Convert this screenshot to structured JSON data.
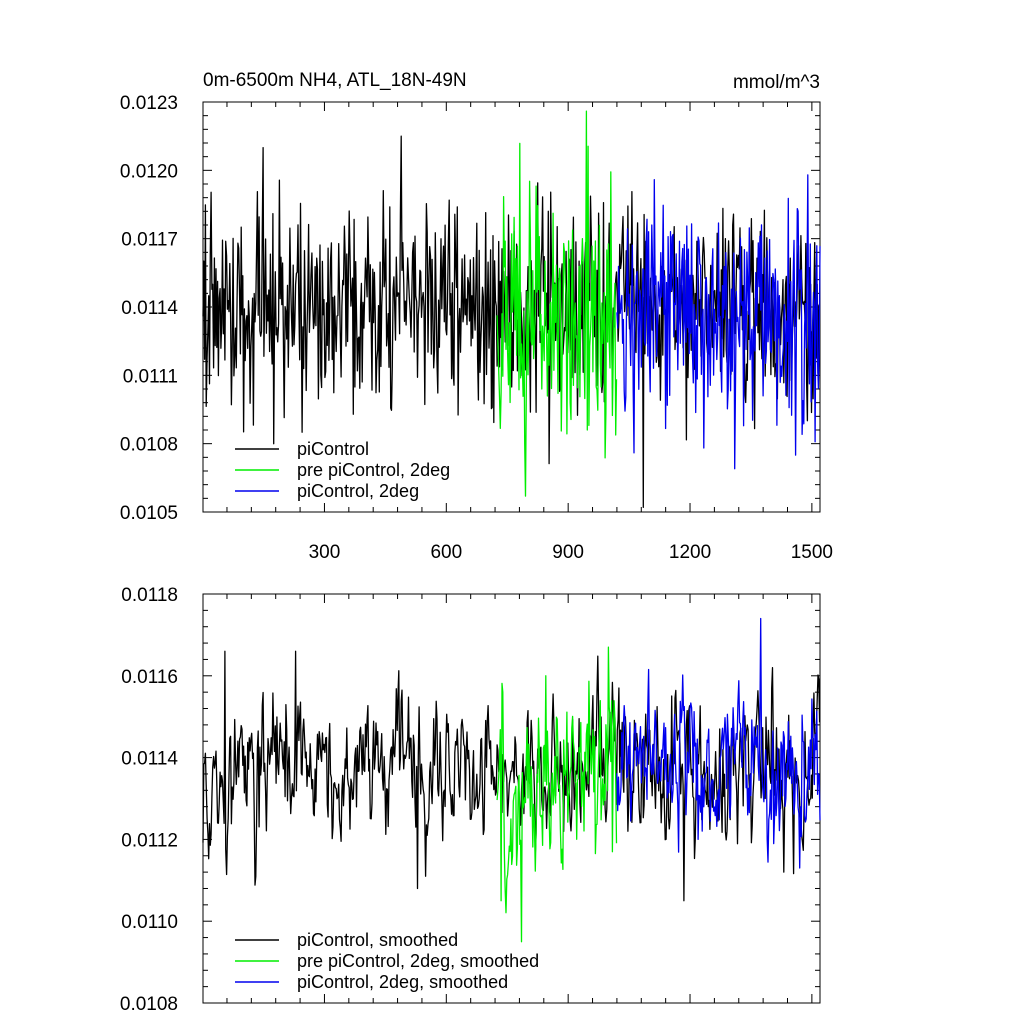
{
  "chart_data": [
    {
      "type": "line",
      "title": "0m-6500m NH4, ATL_18N-49N",
      "units": "mmol/m^3",
      "xlim": [
        1,
        1520
      ],
      "ylim": [
        0.0105,
        0.0123
      ],
      "x_ticks": [
        300,
        600,
        900,
        1200,
        1500
      ],
      "x_tick_labels": [
        "300",
        "600",
        "900",
        "1200",
        "1500"
      ],
      "y_ticks": [
        0.0105,
        0.0108,
        0.0111,
        0.0114,
        0.0117,
        0.012,
        0.0123
      ],
      "y_tick_labels": [
        "0.0105",
        "0.0108",
        "0.0111",
        "0.0114",
        "0.0117",
        "0.0120",
        "0.0123"
      ],
      "legend_position": "bottom-left",
      "series": [
        {
          "name": "piControl",
          "color": "#000000",
          "x_start": 1,
          "x_end": 1520,
          "mean": 0.0114,
          "spread": 0.00022,
          "peaks": [
            [
              150,
              0.0121
            ],
            [
              490,
              0.01215
            ],
            [
              1085,
              0.01052
            ],
            [
              175,
              0.0108
            ]
          ]
        },
        {
          "name": "pre piControl, 2deg",
          "color": "#00ee00",
          "x_start": 725,
          "x_end": 1020,
          "mean": 0.01138,
          "spread": 0.00028,
          "peaks": [
            [
              945,
              0.01226
            ],
            [
              795,
              0.01057
            ]
          ]
        },
        {
          "name": "piControl, 2deg",
          "color": "#0000ee",
          "x_start": 1020,
          "x_end": 1520,
          "mean": 0.01136,
          "spread": 0.00023,
          "peaks": [
            [
              1310,
              0.01069
            ],
            [
              1460,
              0.01075
            ],
            [
              1490,
              0.01198
            ]
          ]
        }
      ]
    },
    {
      "type": "line",
      "xlim": [
        1,
        1520
      ],
      "ylim": [
        0.0108,
        0.0118
      ],
      "x_ticks": [
        300,
        600,
        900,
        1200,
        1500
      ],
      "y_ticks": [
        0.0108,
        0.011,
        0.0112,
        0.0114,
        0.0116,
        0.0118
      ],
      "y_tick_labels": [
        "0.0108",
        "0.0110",
        "0.0112",
        "0.0114",
        "0.0116",
        "0.0118"
      ],
      "legend_position": "bottom-left",
      "series": [
        {
          "name": "piControl, smoothed",
          "color": "#000000",
          "x_start": 1,
          "x_end": 1520,
          "mean": 0.01136,
          "spread": 0.0001,
          "peaks": [
            [
              55,
              0.01166
            ],
            [
              230,
              0.01166
            ],
            [
              1185,
              0.01105
            ],
            [
              530,
              0.01108
            ]
          ]
        },
        {
          "name": "pre piControl, 2deg, smoothed",
          "color": "#00ee00",
          "x_start": 725,
          "x_end": 1020,
          "mean": 0.01133,
          "spread": 0.00012,
          "peaks": [
            [
              785,
              0.01095
            ],
            [
              735,
              0.01105
            ],
            [
              845,
              0.0116
            ],
            [
              1000,
              0.01167
            ]
          ]
        },
        {
          "name": "piControl, 2deg, smoothed",
          "color": "#0000ee",
          "x_start": 1020,
          "x_end": 1520,
          "mean": 0.01138,
          "spread": 0.0001,
          "peaks": [
            [
              1375,
              0.01174
            ],
            [
              1470,
              0.01113
            ],
            [
              1220,
              0.0112
            ]
          ]
        }
      ]
    }
  ]
}
